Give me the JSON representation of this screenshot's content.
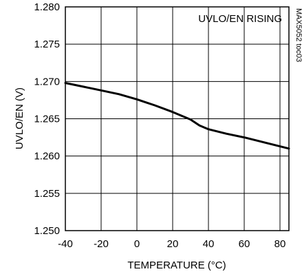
{
  "chart_data": {
    "type": "line",
    "title": "",
    "annotation": "UVLO/EN RISING",
    "side_label": "MAX5052 toc03",
    "xlabel": "TEMPERATURE (°C)",
    "ylabel": "UVLO/EN (V)",
    "xlim": [
      -40,
      85
    ],
    "ylim": [
      1.25,
      1.28
    ],
    "x_ticks": [
      -40,
      -20,
      0,
      20,
      40,
      60,
      80
    ],
    "x_tick_labels": [
      "-40",
      "-20",
      "0",
      "20",
      "40",
      "60",
      "80"
    ],
    "y_ticks": [
      1.25,
      1.255,
      1.26,
      1.265,
      1.27,
      1.275,
      1.28
    ],
    "y_tick_labels": [
      "1.250",
      "1.255",
      "1.260",
      "1.265",
      "1.270",
      "1.275",
      "1.280"
    ],
    "grid": true,
    "series": [
      {
        "x": [
          -40,
          -30,
          -20,
          -10,
          0,
          5,
          10,
          20,
          30,
          35,
          40,
          50,
          60,
          70,
          80,
          85
        ],
        "y": [
          1.2698,
          1.2693,
          1.2688,
          1.2683,
          1.2676,
          1.2672,
          1.2668,
          1.2659,
          1.2649,
          1.2641,
          1.2636,
          1.263,
          1.2625,
          1.2619,
          1.2613,
          1.261
        ]
      }
    ]
  }
}
